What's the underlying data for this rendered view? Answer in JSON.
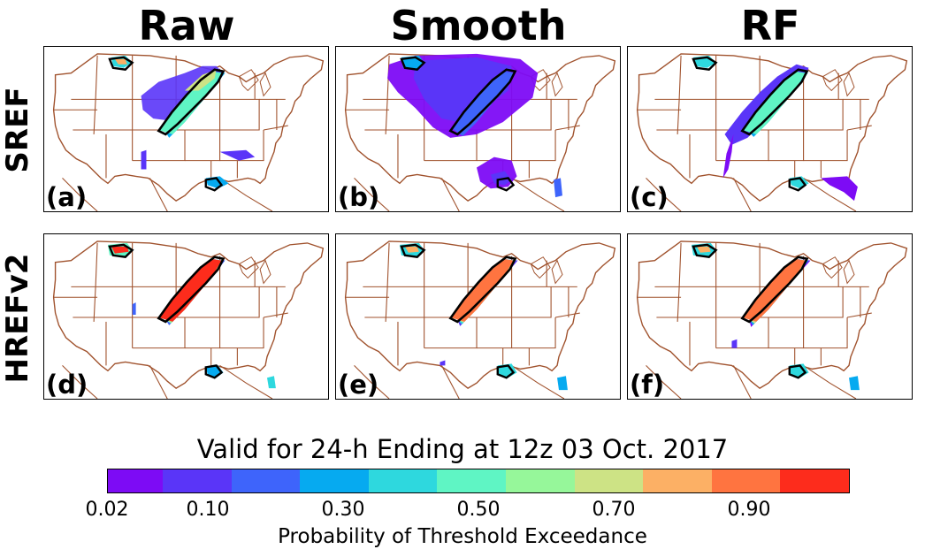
{
  "columns": [
    "Raw",
    "Smooth",
    "RF"
  ],
  "rows": [
    "SREF",
    "HREFv2"
  ],
  "panels": [
    {
      "label": "(a)",
      "row": "SREF",
      "col": "Raw"
    },
    {
      "label": "(b)",
      "row": "SREF",
      "col": "Smooth"
    },
    {
      "label": "(c)",
      "row": "SREF",
      "col": "RF"
    },
    {
      "label": "(d)",
      "row": "HREFv2",
      "col": "Raw"
    },
    {
      "label": "(e)",
      "row": "HREFv2",
      "col": "Smooth"
    },
    {
      "label": "(f)",
      "row": "HREFv2",
      "col": "RF"
    }
  ],
  "valid_text": "Valid for 24-h Ending at 12z 03 Oct. 2017",
  "colorbar": {
    "label": "Probability of Threshold Exceedance",
    "ticks": [
      "0.02",
      "0.10",
      "0.30",
      "0.50",
      "0.70",
      "0.90"
    ],
    "bounds": [
      0.02,
      0.1,
      0.2,
      0.3,
      0.4,
      0.5,
      0.6,
      0.7,
      0.8,
      0.9,
      1.0
    ],
    "colors": [
      "#7d0bf5",
      "#5a35f8",
      "#3e64fb",
      "#06aaf0",
      "#2ed8de",
      "#5ff5c4",
      "#96f79a",
      "#cde385",
      "#fcb065",
      "#ff7440",
      "#fd2c1c"
    ]
  },
  "map_colors": {
    "borders": "#a0522d",
    "observed_contour": "#000000"
  }
}
